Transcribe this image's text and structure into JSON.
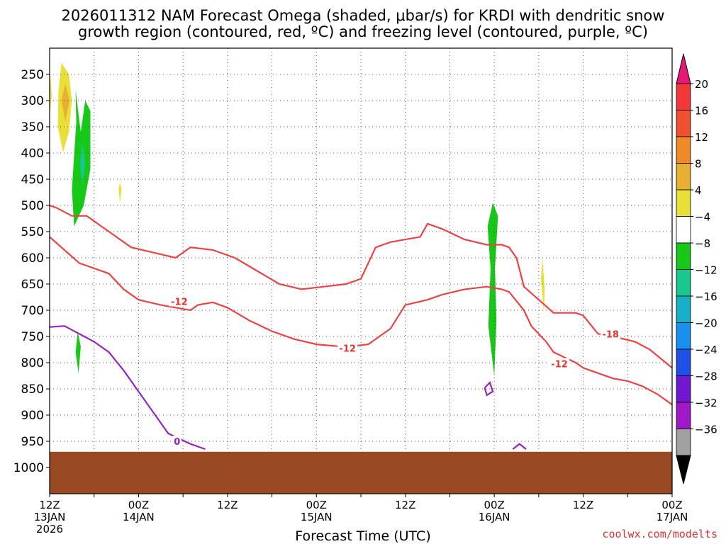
{
  "title_line1": "2026011312 NAM Forecast Omega (shaded, μbar/s) for KRDI with dendritic snow",
  "title_line2": "growth region (contoured, red, ºC) and freezing level (contoured, purple, ºC)",
  "credit": "coolwx.com/modelts",
  "chart_data": {
    "type": "heatmap",
    "title": "2026011312 NAM Forecast Omega (shaded, μbar/s) for KRDI with dendritic snow growth region (contoured, red, ºC) and freezing level (contoured, purple, ºC)",
    "xlabel": "Forecast Time (UTC)",
    "ylabel": "",
    "x_ticks": [
      {
        "hour": 0,
        "label": [
          "12Z",
          "13JAN",
          "2026"
        ]
      },
      {
        "hour": 6,
        "label": []
      },
      {
        "hour": 12,
        "label": [
          "00Z",
          "14JAN"
        ]
      },
      {
        "hour": 18,
        "label": []
      },
      {
        "hour": 24,
        "label": [
          "12Z"
        ]
      },
      {
        "hour": 30,
        "label": []
      },
      {
        "hour": 36,
        "label": [
          "00Z",
          "15JAN"
        ]
      },
      {
        "hour": 42,
        "label": []
      },
      {
        "hour": 48,
        "label": [
          "12Z"
        ]
      },
      {
        "hour": 54,
        "label": []
      },
      {
        "hour": 60,
        "label": [
          "00Z",
          "16JAN"
        ]
      },
      {
        "hour": 66,
        "label": []
      },
      {
        "hour": 72,
        "label": [
          "12Z"
        ]
      },
      {
        "hour": 78,
        "label": []
      },
      {
        "hour": 84,
        "label": [
          "00Z",
          "17JAN"
        ]
      }
    ],
    "xlim": [
      0,
      84
    ],
    "ylim": [
      1050,
      200
    ],
    "y_ticks": [
      250,
      300,
      350,
      400,
      450,
      500,
      550,
      600,
      650,
      700,
      750,
      800,
      850,
      900,
      950,
      1000
    ],
    "grid": true,
    "colorbar": {
      "ticks": [
        20,
        16,
        12,
        8,
        4,
        -4,
        -8,
        -12,
        -16,
        -20,
        -24,
        -28,
        -32,
        -36
      ],
      "colors": [
        "#f03838",
        "#f05030",
        "#f08a28",
        "#e8b030",
        "#e8e038",
        "#ffffff",
        "#18c818",
        "#18c890",
        "#18b0c8",
        "#1890f0",
        "#2050e8",
        "#7018d0",
        "#a018c8",
        "#a0a0a0"
      ],
      "top_arrow": "#e8187a",
      "bottom_arrow": "#000000"
    },
    "omega_regions": [
      {
        "level": "4 to 8",
        "color": "#e8e038",
        "points": [
          [
            1.6,
            228
          ],
          [
            2.6,
            250
          ],
          [
            3.0,
            300
          ],
          [
            2.6,
            360
          ],
          [
            1.8,
            398
          ],
          [
            1.1,
            350
          ],
          [
            1.2,
            280
          ]
        ]
      },
      {
        "level": "8 to 12",
        "color": "#e8b030",
        "points": [
          [
            2.1,
            268
          ],
          [
            2.7,
            300
          ],
          [
            2.1,
            340
          ],
          [
            1.6,
            300
          ]
        ]
      },
      {
        "level": "4 to 8",
        "color": "#e8e038",
        "points": [
          [
            0.0,
            238
          ],
          [
            0.3,
            290
          ],
          [
            0.1,
            320
          ]
        ]
      },
      {
        "level": "-4 to -8",
        "color": "#18c818",
        "points": [
          [
            3.5,
            280
          ],
          [
            4.2,
            360
          ],
          [
            4.8,
            300
          ],
          [
            5.5,
            320
          ],
          [
            5.5,
            430
          ],
          [
            4.6,
            500
          ],
          [
            3.3,
            540
          ],
          [
            3.0,
            470
          ],
          [
            3.6,
            340
          ]
        ]
      },
      {
        "level": "-8 to -12",
        "color": "#18c890",
        "points": [
          [
            4.4,
            380
          ],
          [
            4.8,
            420
          ],
          [
            4.4,
            460
          ],
          [
            4.1,
            420
          ]
        ]
      },
      {
        "level": "4 to 8",
        "color": "#e8e038",
        "points": [
          [
            9.5,
            455
          ],
          [
            9.7,
            470
          ],
          [
            9.5,
            495
          ],
          [
            9.3,
            470
          ]
        ]
      },
      {
        "level": "-4 to -8",
        "color": "#18c818",
        "points": [
          [
            3.8,
            740
          ],
          [
            4.2,
            770
          ],
          [
            3.9,
            820
          ],
          [
            3.5,
            780
          ]
        ]
      },
      {
        "level": "-4 to -8",
        "color": "#18c818",
        "points": [
          [
            59.8,
            495
          ],
          [
            60.5,
            520
          ],
          [
            60.1,
            620
          ],
          [
            60.3,
            720
          ],
          [
            60.0,
            825
          ],
          [
            59.2,
            730
          ],
          [
            59.5,
            620
          ],
          [
            59.1,
            540
          ]
        ]
      },
      {
        "level": "4 to 8",
        "color": "#e8e038",
        "points": [
          [
            66.5,
            600
          ],
          [
            66.8,
            660
          ],
          [
            66.7,
            705
          ],
          [
            66.3,
            640
          ]
        ]
      }
    ],
    "red_contours": [
      {
        "label": "-12",
        "points": [
          [
            0,
            500
          ],
          [
            1,
            505
          ],
          [
            3,
            520
          ],
          [
            5,
            520
          ],
          [
            7,
            540
          ],
          [
            9,
            560
          ],
          [
            11,
            580
          ],
          [
            14,
            590
          ],
          [
            17,
            600
          ],
          [
            19,
            580
          ],
          [
            22,
            585
          ],
          [
            25,
            600
          ],
          [
            28,
            625
          ],
          [
            31,
            650
          ],
          [
            34,
            660
          ],
          [
            37,
            655
          ],
          [
            40,
            650
          ],
          [
            42,
            640
          ],
          [
            44,
            580
          ],
          [
            46,
            570
          ],
          [
            48,
            565
          ],
          [
            50,
            560
          ],
          [
            51,
            535
          ],
          [
            53,
            545
          ],
          [
            56,
            565
          ],
          [
            59,
            575
          ],
          [
            61,
            575
          ],
          [
            62,
            580
          ],
          [
            63,
            600
          ],
          [
            64,
            655
          ],
          [
            66,
            680
          ],
          [
            68,
            705
          ],
          [
            71,
            705
          ],
          [
            72,
            710
          ],
          [
            74,
            745
          ],
          [
            76,
            750
          ],
          [
            79,
            760
          ],
          [
            81,
            775
          ],
          [
            84,
            810
          ]
        ]
      },
      {
        "label": "-12",
        "points": [
          [
            0,
            560
          ],
          [
            2,
            585
          ],
          [
            4,
            610
          ],
          [
            6,
            620
          ],
          [
            8,
            630
          ],
          [
            10,
            660
          ],
          [
            12,
            680
          ],
          [
            15,
            690
          ],
          [
            17,
            695
          ],
          [
            19,
            700
          ],
          [
            20,
            690
          ],
          [
            22,
            685
          ],
          [
            24,
            695
          ],
          [
            27,
            720
          ],
          [
            30,
            740
          ],
          [
            33,
            755
          ],
          [
            36,
            765
          ],
          [
            40,
            770
          ],
          [
            43,
            765
          ],
          [
            46,
            735
          ],
          [
            48,
            690
          ],
          [
            51,
            680
          ],
          [
            53,
            670
          ],
          [
            56,
            660
          ],
          [
            59,
            655
          ],
          [
            61,
            660
          ],
          [
            62,
            665
          ],
          [
            64,
            700
          ],
          [
            65,
            730
          ],
          [
            67,
            760
          ],
          [
            68,
            780
          ],
          [
            71,
            800
          ],
          [
            72,
            810
          ],
          [
            74,
            820
          ],
          [
            76,
            830
          ],
          [
            78,
            835
          ],
          [
            80,
            845
          ],
          [
            82,
            860
          ],
          [
            84,
            880
          ]
        ]
      }
    ],
    "red_labels": [
      {
        "text": "-12",
        "x": 17.5,
        "y": 683
      },
      {
        "text": "-12",
        "x": 40.2,
        "y": 772
      },
      {
        "text": "-18",
        "x": 75.7,
        "y": 745
      },
      {
        "text": "-12",
        "x": 68.8,
        "y": 802
      }
    ],
    "purple_contours": [
      {
        "label": "0",
        "points": [
          [
            0,
            732
          ],
          [
            2,
            730
          ],
          [
            4,
            745
          ],
          [
            6,
            760
          ],
          [
            8,
            780
          ],
          [
            10,
            815
          ],
          [
            12,
            855
          ],
          [
            14,
            895
          ],
          [
            16,
            935
          ],
          [
            19,
            955
          ],
          [
            20,
            960
          ],
          [
            21,
            965
          ]
        ]
      },
      {
        "label": "",
        "points": [
          [
            58.7,
            848
          ],
          [
            59.4,
            838
          ],
          [
            59.8,
            855
          ],
          [
            59.0,
            862
          ],
          [
            58.7,
            848
          ]
        ]
      },
      {
        "label": "",
        "points": [
          [
            62.5,
            965
          ],
          [
            63.4,
            955
          ],
          [
            64.3,
            965
          ]
        ]
      }
    ],
    "purple_labels": [
      {
        "text": "0",
        "x": 17.2,
        "y": 950
      }
    ],
    "surface_pressure": 970
  }
}
